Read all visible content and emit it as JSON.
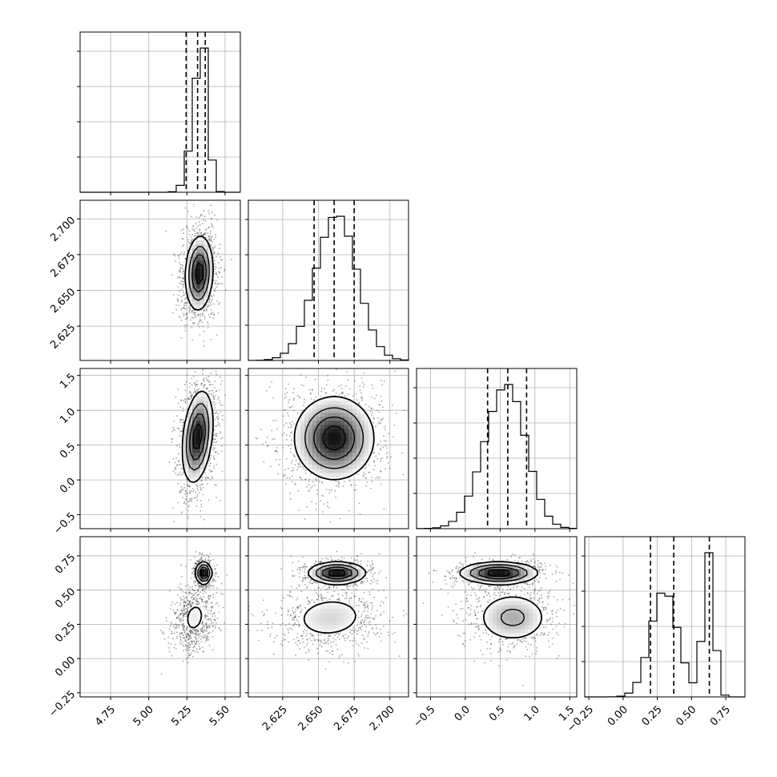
{
  "chart_data": {
    "type": "corner",
    "grid": true,
    "parameters": [
      {
        "range": [
          4.55,
          5.6
        ],
        "ticks": [
          "4.75",
          "5.00",
          "5.25",
          "5.50"
        ],
        "tick_values": [
          4.75,
          5.0,
          5.25,
          5.5
        ],
        "quantiles": [
          5.245,
          5.32,
          5.37
        ],
        "mode": 5.355,
        "sd_left": 0.06,
        "sd_right": 0.035
      },
      {
        "range": [
          2.601,
          2.713
        ],
        "ticks": [
          "2.625",
          "2.650",
          "2.675",
          "2.700"
        ],
        "tick_values": [
          2.625,
          2.65,
          2.675,
          2.7
        ],
        "quantiles": [
          2.647,
          2.661,
          2.675
        ],
        "mode": 2.663,
        "sd_left": 0.015,
        "sd_right": 0.014
      },
      {
        "range": [
          -0.7,
          1.6
        ],
        "ticks": [
          "−0.5",
          "0.0",
          "0.5",
          "1.0",
          "1.5"
        ],
        "tick_values": [
          -0.5,
          0.0,
          0.5,
          1.0,
          1.5
        ],
        "quantiles": [
          0.32,
          0.61,
          0.88
        ],
        "mode": 0.6,
        "sd_left": 0.32,
        "sd_right": 0.27
      },
      {
        "range": [
          -0.28,
          0.89
        ],
        "ticks": [
          "−0.25",
          "0.00",
          "0.25",
          "0.50",
          "0.75"
        ],
        "tick_values": [
          -0.25,
          0.0,
          0.25,
          0.5,
          0.75
        ],
        "quantiles": [
          0.2,
          0.37,
          0.63
        ],
        "components": [
          {
            "mean": 0.3,
            "sd": 0.1,
            "weight": 0.65
          },
          {
            "mean": 0.625,
            "sd": 0.04,
            "weight": 0.35
          }
        ]
      }
    ],
    "joint_density": [
      {
        "row": 1,
        "col": 0,
        "blobs": [
          {
            "center": [
              5.33,
              2.662
            ],
            "sd": [
              0.045,
              0.013
            ],
            "rho": 0.1
          }
        ]
      },
      {
        "row": 2,
        "col": 0,
        "blobs": [
          {
            "center": [
              5.32,
              0.62
            ],
            "sd": [
              0.05,
              0.33
            ],
            "rho": 0.3
          }
        ]
      },
      {
        "row": 2,
        "col": 1,
        "blobs": [
          {
            "center": [
              2.661,
              0.6
            ],
            "sd": [
              0.014,
              0.3
            ],
            "rho": 0.0
          }
        ]
      },
      {
        "row": 3,
        "col": 0,
        "blobs": [
          {
            "center": [
              5.3,
              0.3
            ],
            "sd": [
              0.06,
              0.1
            ],
            "rho": 0.2
          },
          {
            "center": [
              5.36,
              0.625
            ],
            "sd": [
              0.025,
              0.04
            ],
            "rho": 0.0
          }
        ]
      },
      {
        "row": 3,
        "col": 1,
        "blobs": [
          {
            "center": [
              2.658,
              0.3
            ],
            "sd": [
              0.016,
              0.1
            ],
            "rho": 0.1
          },
          {
            "center": [
              2.663,
              0.625
            ],
            "sd": [
              0.01,
              0.04
            ],
            "rho": 0.0
          }
        ]
      },
      {
        "row": 3,
        "col": 2,
        "blobs": [
          {
            "center": [
              0.68,
              0.3
            ],
            "sd": [
              0.28,
              0.1
            ],
            "rho": 0.0
          },
          {
            "center": [
              0.48,
              0.625
            ],
            "sd": [
              0.28,
              0.04
            ],
            "rho": 0.0
          }
        ]
      }
    ]
  }
}
